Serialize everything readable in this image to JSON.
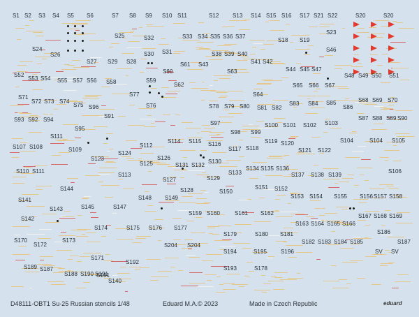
{
  "sheet": {
    "footer_left": "D48111-OBT1 Su-25 Russian stencils 1/48",
    "footer_middle": "Eduard M.A.© 2023",
    "footer_right": "Made in Czech Republic",
    "logo_text": "eduard",
    "accent_colors": {
      "background": "#d5e2ee",
      "stencil_yellow": "#e6c78a",
      "stencil_red": "#d66a6a",
      "flag_red": "#e23a2c"
    }
  },
  "labels": [
    "S1",
    "S2",
    "S3",
    "S4",
    "S5",
    "S6",
    "S7",
    "S8",
    "S9",
    "S10",
    "S11",
    "S12",
    "S13",
    "S14",
    "S15",
    "S16",
    "S17",
    "S21",
    "S22",
    "S20",
    "S20",
    "S25",
    "S32",
    "S33",
    "S34",
    "S35",
    "S36",
    "S37",
    "S18",
    "S19",
    "S23",
    "S24",
    "S26",
    "S27",
    "S29",
    "S28",
    "S30",
    "S31",
    "S38",
    "S39",
    "S40",
    "S41",
    "S42",
    "S46",
    "S60",
    "S61",
    "S43",
    "S63",
    "S44",
    "S45",
    "S47",
    "S52",
    "S53",
    "S54",
    "S55",
    "S57",
    "S56",
    "S58",
    "S59",
    "S62",
    "S48",
    "S49",
    "S50",
    "S51",
    "S65",
    "S66",
    "S67",
    "S71",
    "S72",
    "S73",
    "S74",
    "S75",
    "S96",
    "S77",
    "S76",
    "S64",
    "S68",
    "S69",
    "S70",
    "S78",
    "S79",
    "S80",
    "S81",
    "S82",
    "S83",
    "S84",
    "S85",
    "S86",
    "S93",
    "S92",
    "S94",
    "S91",
    "S87",
    "S88",
    "S89",
    "S90",
    "S95",
    "S97",
    "S100",
    "S101",
    "S102",
    "S103",
    "S98",
    "S99",
    "S111",
    "S112",
    "S114",
    "S115",
    "S116",
    "S117",
    "S118",
    "S119",
    "S120",
    "S104",
    "S104",
    "S105",
    "S107",
    "S108",
    "S109",
    "S124",
    "S121",
    "S122",
    "S123",
    "S125",
    "S126",
    "S131",
    "S132",
    "S130",
    "S133",
    "S134",
    "S135",
    "S136",
    "S106",
    "S110",
    "S111",
    "S113",
    "S127",
    "S129",
    "S137",
    "S138",
    "S139",
    "S144",
    "S128",
    "S150",
    "S151",
    "S152",
    "S141",
    "S148",
    "S149",
    "S153",
    "S154",
    "S155",
    "S156",
    "S157",
    "S158",
    "S143",
    "S145",
    "S147",
    "S159",
    "S160",
    "S161",
    "S162",
    "S167",
    "S168",
    "S169",
    "S142",
    "S163",
    "S164",
    "S165",
    "S166",
    "S174",
    "S175",
    "S176",
    "S177",
    "S179",
    "S180",
    "S181",
    "S186",
    "S170",
    "S172",
    "S173",
    "S204",
    "S204",
    "S182",
    "S183",
    "S184",
    "S185",
    "S187",
    "S171",
    "S192",
    "S194",
    "S195",
    "S196",
    "SV",
    "SV",
    "S189",
    "S187",
    "S193",
    "S178",
    "S191",
    "S188",
    "S190",
    "S191",
    "S140"
  ]
}
